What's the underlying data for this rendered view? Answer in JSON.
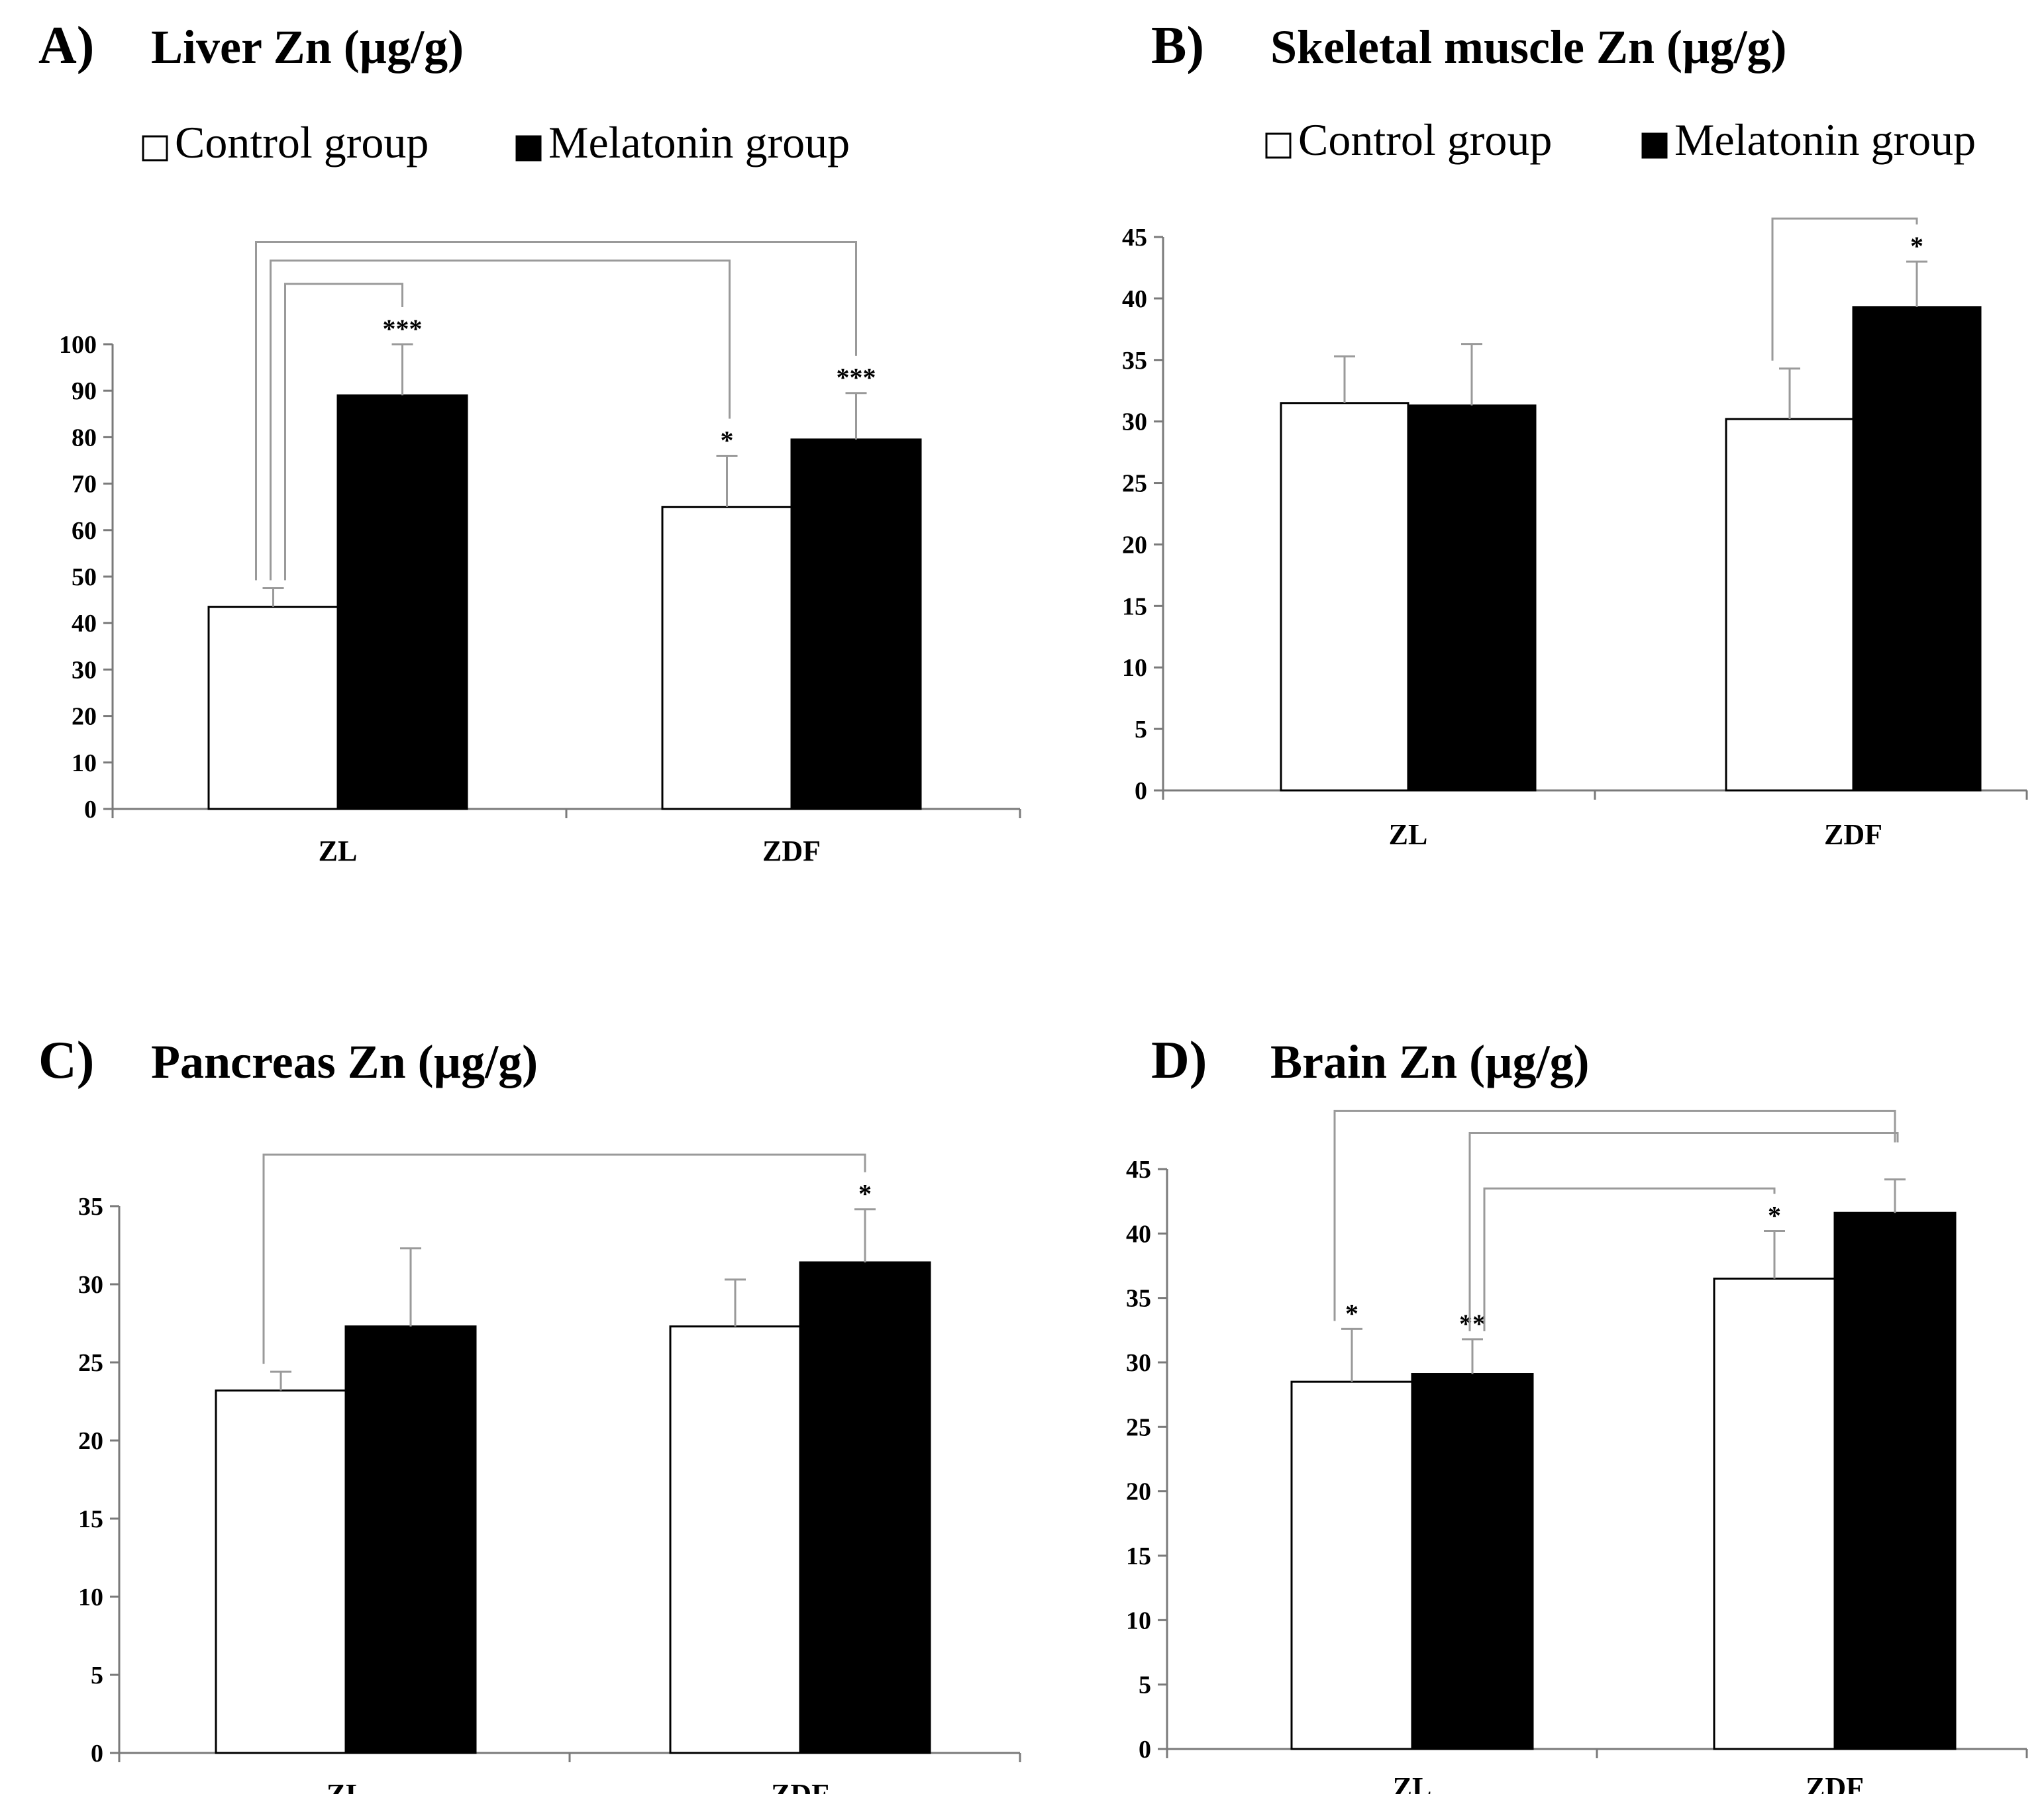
{
  "legend": {
    "control": "Control group",
    "melatonin": "Melatonin group"
  },
  "colors": {
    "control": "#ffffff",
    "melatonin": "#000000",
    "bracket": "#9a9a9a",
    "axis": "#7a7a7a"
  },
  "chart_data": [
    {
      "id": "A",
      "letter": "A)",
      "title": "Liver Zn (µg/g)",
      "type": "bar",
      "categories": [
        "ZL",
        "ZDF"
      ],
      "series": [
        {
          "name": "Control group",
          "values": [
            43.5,
            65
          ],
          "errors": [
            4,
            11
          ],
          "labels": [
            "",
            "*"
          ]
        },
        {
          "name": "Melatonin group",
          "values": [
            89,
            79.5
          ],
          "errors": [
            11,
            10
          ],
          "labels": [
            "***",
            "***"
          ]
        }
      ],
      "ylim": [
        0,
        100
      ],
      "yticks": [
        0,
        10,
        20,
        30,
        40,
        50,
        60,
        70,
        80,
        90,
        100
      ],
      "legend_visible": true,
      "brackets": [
        {
          "from": [
            0,
            0
          ],
          "to": [
            1,
            1
          ],
          "level": 122
        },
        {
          "from": [
            0,
            0
          ],
          "to": [
            1,
            0
          ],
          "level": 118
        },
        {
          "from": [
            0,
            0
          ],
          "to": [
            0,
            1
          ],
          "level": 113
        }
      ]
    },
    {
      "id": "B",
      "letter": "B)",
      "title": "Skeletal muscle Zn (µg/g)",
      "type": "bar",
      "categories": [
        "ZL",
        "ZDF"
      ],
      "series": [
        {
          "name": "Control group",
          "values": [
            31.5,
            30.2
          ],
          "errors": [
            3.8,
            4.1
          ],
          "labels": [
            "",
            ""
          ]
        },
        {
          "name": "Melatonin group",
          "values": [
            31.3,
            39.3
          ],
          "errors": [
            5,
            3.7
          ],
          "labels": [
            "",
            "*"
          ]
        }
      ],
      "ylim": [
        0,
        45
      ],
      "yticks": [
        0,
        5,
        10,
        15,
        20,
        25,
        30,
        35,
        40,
        45
      ],
      "legend_visible": true,
      "brackets": [
        {
          "from": [
            1,
            0
          ],
          "to": [
            1,
            1
          ],
          "level": 46.5
        }
      ]
    },
    {
      "id": "C",
      "letter": "C)",
      "title": "Pancreas Zn (µg/g)",
      "type": "bar",
      "categories": [
        "ZL",
        "ZDF"
      ],
      "series": [
        {
          "name": "Control group",
          "values": [
            23.2,
            27.3
          ],
          "errors": [
            1.2,
            3
          ],
          "labels": [
            "",
            ""
          ]
        },
        {
          "name": "Melatonin group",
          "values": [
            27.3,
            31.4
          ],
          "errors": [
            5,
            3.4
          ],
          "labels": [
            "",
            "*"
          ]
        }
      ],
      "ylim": [
        0,
        35
      ],
      "yticks": [
        0,
        5,
        10,
        15,
        20,
        25,
        30,
        35
      ],
      "legend_visible": false,
      "brackets": [
        {
          "from": [
            0,
            0
          ],
          "to": [
            1,
            1
          ],
          "level": 38.3
        }
      ]
    },
    {
      "id": "D",
      "letter": "D)",
      "title": "Brain Zn (µg/g)",
      "type": "bar",
      "categories": [
        "ZL",
        "ZDF"
      ],
      "series": [
        {
          "name": "Control group",
          "values": [
            28.5,
            36.5
          ],
          "errors": [
            4.1,
            3.7
          ],
          "labels": [
            "*",
            "*"
          ]
        },
        {
          "name": "Melatonin group",
          "values": [
            29.1,
            41.6
          ],
          "errors": [
            2.7,
            2.6
          ],
          "labels": [
            "**",
            ""
          ]
        }
      ],
      "ylim": [
        0,
        45
      ],
      "yticks": [
        0,
        5,
        10,
        15,
        20,
        25,
        30,
        35,
        40,
        45
      ],
      "legend_visible": false,
      "brackets": [
        {
          "from": [
            0,
            0
          ],
          "to": [
            1,
            1
          ],
          "level": 49.5
        },
        {
          "from": [
            0,
            1
          ],
          "to": [
            1,
            1
          ],
          "level": 47.8
        },
        {
          "from": [
            0,
            1
          ],
          "to": [
            1,
            0
          ],
          "level": 43.5
        }
      ]
    }
  ]
}
